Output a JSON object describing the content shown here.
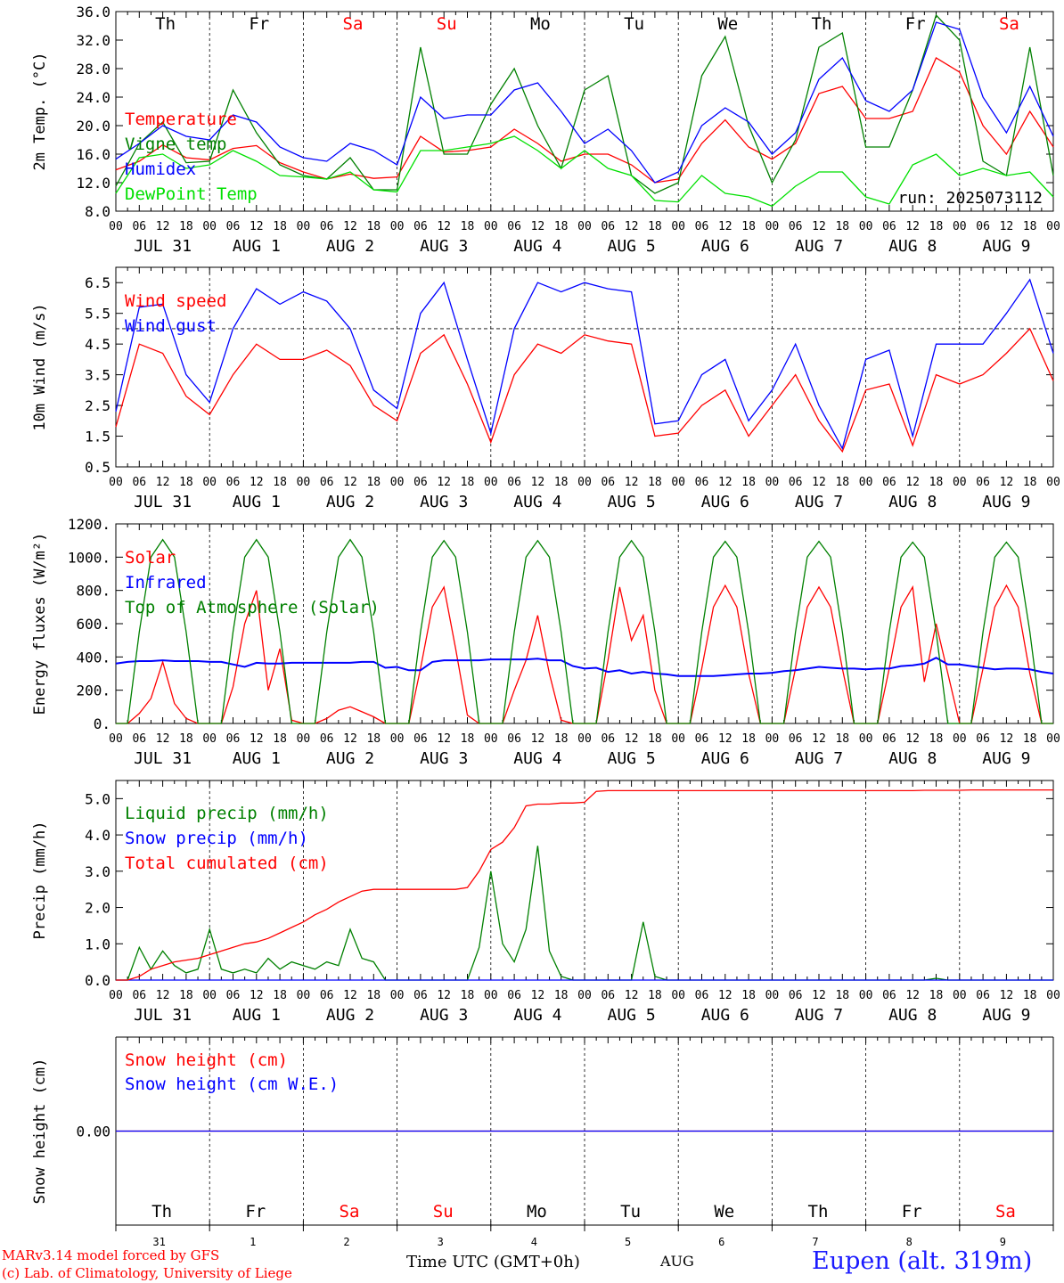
{
  "days": [
    "Th",
    "Fr",
    "Sa",
    "Su",
    "Mo",
    "Tu",
    "We",
    "Th",
    "Fr",
    "Sa"
  ],
  "weekend_indices": [
    2,
    3,
    9
  ],
  "date_labels": [
    "JUL 31",
    "AUG  1",
    "AUG  2",
    "AUG  3",
    "AUG  4",
    "AUG  5",
    "AUG  6",
    "AUG  7",
    "AUG  8",
    "AUG  9"
  ],
  "hour_ticks": [
    "00",
    "06",
    "12",
    "18"
  ],
  "bottom_day_numbers": [
    "31",
    "1",
    "2",
    "3",
    "4",
    "5",
    "6",
    "7",
    "8",
    "9"
  ],
  "bottom_month": "AUG",
  "xlabel": "Time UTC (GMT+0h)",
  "credits": [
    "MARv3.14 model forced by GFS",
    "(c) Lab. of Climatology, University of Liege"
  ],
  "station": "Eupen (alt. 319m)",
  "colors": {
    "red": "#ff0000",
    "blue": "#0000ff",
    "green": "#008000",
    "lightgreen": "#00e000"
  },
  "chart_data": [
    {
      "type": "line",
      "ylabel": "2m Temp. (°C)",
      "ylim": [
        8,
        36
      ],
      "yticks": [
        "8.0",
        "12.0",
        "16.0",
        "20.0",
        "24.0",
        "28.0",
        "32.0",
        "36.0"
      ],
      "run_label": "run: 2025073112",
      "x_hours": [
        0,
        6,
        12,
        18,
        24,
        30,
        36,
        42,
        48,
        54,
        60,
        66,
        72,
        78,
        84,
        90,
        96,
        102,
        108,
        114,
        120,
        126,
        132,
        138,
        144,
        150,
        156,
        162,
        168,
        174,
        180,
        186,
        192,
        198,
        204,
        210,
        216,
        222,
        228,
        234,
        240
      ],
      "series": [
        {
          "name": "Temperature",
          "color": "red",
          "values": [
            13.8,
            15,
            17.3,
            15.5,
            15.2,
            16.8,
            17.2,
            14.8,
            13.5,
            12.5,
            13.2,
            12.6,
            12.8,
            18.5,
            16.3,
            16.5,
            17,
            19.5,
            17.5,
            15,
            16,
            16,
            14.5,
            12,
            12.5,
            17.5,
            20.8,
            17,
            15.3,
            17.5,
            24.5,
            25.5,
            21,
            21,
            22,
            29.5,
            27.5,
            20,
            16,
            22,
            17
          ]
        },
        {
          "name": "Vigne temp",
          "color": "green",
          "values": [
            11.5,
            17.5,
            20.5,
            14.8,
            15,
            25,
            19,
            14.5,
            13,
            12.5,
            15.5,
            11,
            11,
            31,
            16,
            16,
            23,
            28,
            20,
            14,
            25,
            27,
            13,
            10.5,
            12,
            27,
            32.5,
            20,
            12,
            18,
            31,
            33,
            17,
            17,
            25,
            35.5,
            32,
            15,
            13,
            31,
            13
          ]
        },
        {
          "name": "Humidex",
          "color": "blue",
          "values": [
            15.3,
            17.5,
            20,
            18.5,
            18,
            21.5,
            20.5,
            17,
            15.5,
            15,
            17.5,
            16.5,
            14.5,
            24,
            21,
            21.5,
            21.5,
            25,
            26,
            22,
            17.5,
            19.5,
            16.5,
            12,
            13.5,
            20,
            22.5,
            20.5,
            16,
            19,
            26.5,
            29.5,
            23.5,
            22,
            25,
            34.5,
            33.5,
            24,
            19,
            25.5,
            18.5
          ]
        },
        {
          "name": "DewPoint Temp",
          "color": "lightgreen",
          "values": [
            10.5,
            15.5,
            16,
            14,
            14.5,
            16.5,
            15,
            13,
            12.8,
            12.5,
            13.5,
            11,
            10.7,
            16.5,
            16.5,
            17,
            17.5,
            18.5,
            16.5,
            14,
            16.5,
            14,
            13,
            9.5,
            9.3,
            13,
            10.5,
            10,
            8.7,
            11.5,
            13.5,
            13.5,
            10,
            9,
            14.5,
            16,
            13,
            14,
            13,
            13.5,
            10
          ]
        }
      ]
    },
    {
      "type": "line",
      "ylabel": "10m Wind (m/s)",
      "ylim": [
        0.5,
        7
      ],
      "yticks": [
        "0.5",
        "1.5",
        "2.5",
        "3.5",
        "4.5",
        "5.5",
        "6.5"
      ],
      "ref_line": 5,
      "x_hours": [
        0,
        6,
        12,
        18,
        24,
        30,
        36,
        42,
        48,
        54,
        60,
        66,
        72,
        78,
        84,
        90,
        96,
        102,
        108,
        114,
        120,
        126,
        132,
        138,
        144,
        150,
        156,
        162,
        168,
        174,
        180,
        186,
        192,
        198,
        204,
        210,
        216,
        222,
        228,
        234,
        240
      ],
      "series": [
        {
          "name": "Wind speed",
          "color": "red",
          "values": [
            1.8,
            4.5,
            4.2,
            2.8,
            2.2,
            3.5,
            4.5,
            4,
            4,
            4.3,
            3.8,
            2.5,
            2,
            4.2,
            4.8,
            3.2,
            1.3,
            3.5,
            4.5,
            4.2,
            4.8,
            4.6,
            4.5,
            1.5,
            1.6,
            2.5,
            3,
            1.5,
            2.5,
            3.5,
            2,
            1,
            3,
            3.2,
            1.2,
            3.5,
            3.2,
            3.5,
            4.2,
            5,
            3.3
          ]
        },
        {
          "name": "Wind gust",
          "color": "blue",
          "values": [
            2.3,
            5.7,
            5.8,
            3.5,
            2.6,
            5,
            6.3,
            5.8,
            6.2,
            5.9,
            5,
            3,
            2.4,
            5.5,
            6.5,
            4,
            1.6,
            5,
            6.5,
            6.2,
            6.5,
            6.3,
            6.2,
            1.9,
            2,
            3.5,
            4,
            2,
            3,
            4.5,
            2.5,
            1.1,
            4,
            4.3,
            1.5,
            4.5,
            4.5,
            4.5,
            5.5,
            6.6,
            4.2
          ]
        }
      ]
    },
    {
      "type": "line",
      "ylabel": "Energy fluxes (W/m²)",
      "ylim": [
        0,
        1200
      ],
      "yticks": [
        "0.",
        "200.",
        "400.",
        "600.",
        "800.",
        "1000.",
        "1200."
      ],
      "x_hours": [
        0,
        3,
        6,
        9,
        12,
        15,
        18,
        21,
        24,
        27,
        30,
        33,
        36,
        39,
        42,
        45,
        48,
        51,
        54,
        57,
        60,
        63,
        66,
        69,
        72,
        75,
        78,
        81,
        84,
        87,
        90,
        93,
        96,
        99,
        102,
        105,
        108,
        111,
        114,
        117,
        120,
        123,
        126,
        129,
        132,
        135,
        138,
        141,
        144,
        147,
        150,
        153,
        156,
        159,
        162,
        165,
        168,
        171,
        174,
        177,
        180,
        183,
        186,
        189,
        192,
        195,
        198,
        201,
        204,
        207,
        210,
        213,
        216,
        219,
        222,
        225,
        228,
        231,
        234,
        237,
        240
      ],
      "series": [
        {
          "name": "Solar",
          "color": "red",
          "values": [
            0,
            0,
            60,
            150,
            370,
            120,
            30,
            0,
            0,
            0,
            220,
            600,
            800,
            200,
            450,
            20,
            0,
            0,
            30,
            80,
            100,
            70,
            40,
            0,
            0,
            0,
            330,
            700,
            820,
            450,
            50,
            0,
            0,
            0,
            200,
            380,
            650,
            300,
            20,
            0,
            0,
            0,
            380,
            820,
            500,
            650,
            200,
            0,
            0,
            0,
            330,
            700,
            830,
            700,
            300,
            0,
            0,
            0,
            330,
            700,
            820,
            700,
            330,
            0,
            0,
            0,
            330,
            700,
            820,
            250,
            600,
            300,
            0,
            0,
            330,
            700,
            830,
            700,
            300,
            0,
            0
          ]
        },
        {
          "name": "Infrared",
          "color": "blue",
          "values": [
            360,
            370,
            375,
            375,
            380,
            375,
            375,
            375,
            370,
            370,
            355,
            340,
            365,
            360,
            360,
            365,
            365,
            365,
            365,
            365,
            365,
            370,
            370,
            335,
            340,
            320,
            320,
            370,
            380,
            380,
            380,
            380,
            385,
            385,
            385,
            385,
            390,
            380,
            380,
            345,
            330,
            335,
            310,
            320,
            300,
            310,
            300,
            295,
            285,
            285,
            285,
            285,
            290,
            295,
            300,
            300,
            305,
            315,
            320,
            330,
            340,
            335,
            330,
            330,
            325,
            330,
            330,
            345,
            350,
            360,
            395,
            355,
            355,
            345,
            335,
            325,
            330,
            330,
            325,
            310,
            300
          ]
        },
        {
          "name": "Top of Atmosphere (Solar)",
          "color": "green",
          "values": [
            0,
            0,
            550,
            1000,
            1105,
            1000,
            550,
            0,
            0,
            0,
            550,
            1000,
            1105,
            1000,
            550,
            0,
            0,
            0,
            550,
            1000,
            1105,
            1000,
            550,
            0,
            0,
            0,
            550,
            1000,
            1100,
            1000,
            550,
            0,
            0,
            0,
            550,
            1000,
            1100,
            1000,
            550,
            0,
            0,
            0,
            550,
            1000,
            1100,
            1000,
            550,
            0,
            0,
            0,
            550,
            1000,
            1095,
            1000,
            550,
            0,
            0,
            0,
            550,
            1000,
            1095,
            1000,
            550,
            0,
            0,
            0,
            550,
            1000,
            1090,
            1000,
            550,
            0,
            0,
            0,
            550,
            1000,
            1090,
            1000,
            550,
            0,
            0
          ]
        }
      ]
    },
    {
      "type": "line",
      "ylabel": "Precip (mm/h)",
      "ylim": [
        0,
        5.5
      ],
      "yticks": [
        "0.0",
        "1.0",
        "2.0",
        "3.0",
        "4.0",
        "5.0"
      ],
      "x_hours": [
        0,
        3,
        6,
        9,
        12,
        15,
        18,
        21,
        24,
        27,
        30,
        33,
        36,
        39,
        42,
        45,
        48,
        51,
        54,
        57,
        60,
        63,
        66,
        69,
        72,
        75,
        78,
        81,
        84,
        87,
        90,
        93,
        96,
        99,
        102,
        105,
        108,
        111,
        114,
        117,
        120,
        123,
        126,
        129,
        132,
        135,
        138,
        141,
        144,
        147,
        150,
        153,
        156,
        159,
        162,
        165,
        168,
        171,
        174,
        177,
        180,
        183,
        186,
        189,
        192,
        195,
        198,
        201,
        204,
        207,
        210,
        213,
        216,
        219,
        222,
        225,
        228,
        231,
        234,
        237,
        240
      ],
      "series": [
        {
          "name": "Liquid precip (mm/h)",
          "color": "green",
          "values": [
            0,
            0,
            0.9,
            0.3,
            0.8,
            0.4,
            0.2,
            0.3,
            1.4,
            0.3,
            0.2,
            0.3,
            0.2,
            0.6,
            0.3,
            0.5,
            0.4,
            0.3,
            0.5,
            0.4,
            1.4,
            0.6,
            0.5,
            0,
            0,
            0,
            0,
            0,
            0,
            0,
            0,
            0.9,
            3,
            1,
            0.5,
            1.4,
            3.7,
            0.8,
            0.1,
            0,
            0,
            0,
            0,
            0,
            0,
            1.6,
            0.1,
            0,
            0,
            0,
            0,
            0,
            0,
            0,
            0,
            0,
            0,
            0,
            0,
            0,
            0,
            0,
            0,
            0,
            0,
            0,
            0,
            0,
            0,
            0,
            0.05,
            0,
            0,
            0,
            0,
            0,
            0,
            0,
            0,
            0,
            0
          ]
        },
        {
          "name": "Snow precip (mm/h)",
          "color": "blue",
          "values": [
            0,
            0,
            0,
            0,
            0,
            0,
            0,
            0,
            0,
            0,
            0,
            0,
            0,
            0,
            0,
            0,
            0,
            0,
            0,
            0,
            0,
            0,
            0,
            0,
            0,
            0,
            0,
            0,
            0,
            0,
            0,
            0,
            0,
            0,
            0,
            0,
            0,
            0,
            0,
            0,
            0,
            0,
            0,
            0,
            0,
            0,
            0,
            0,
            0,
            0,
            0,
            0,
            0,
            0,
            0,
            0,
            0,
            0,
            0,
            0,
            0,
            0,
            0,
            0,
            0,
            0,
            0,
            0,
            0,
            0,
            0,
            0,
            0,
            0,
            0,
            0,
            0,
            0,
            0,
            0,
            0
          ]
        },
        {
          "name": "Total cumulated (cm)",
          "color": "red",
          "values": [
            0,
            0,
            0.1,
            0.3,
            0.4,
            0.5,
            0.55,
            0.6,
            0.7,
            0.8,
            0.9,
            1,
            1.05,
            1.15,
            1.3,
            1.45,
            1.6,
            1.8,
            1.95,
            2.15,
            2.3,
            2.45,
            2.5,
            2.5,
            2.5,
            2.5,
            2.5,
            2.5,
            2.5,
            2.5,
            2.55,
            3,
            3.6,
            3.8,
            4.2,
            4.8,
            4.85,
            4.85,
            4.88,
            4.88,
            4.9,
            5.2,
            5.22,
            5.22,
            5.22,
            5.22,
            5.22,
            5.22,
            5.22,
            5.22,
            5.22,
            5.22,
            5.22,
            5.22,
            5.22,
            5.22,
            5.22,
            5.22,
            5.22,
            5.22,
            5.22,
            5.22,
            5.22,
            5.22,
            5.22,
            5.22,
            5.22,
            5.22,
            5.22,
            5.23,
            5.23,
            5.23,
            5.23,
            5.24,
            5.24,
            5.24,
            5.24,
            5.24,
            5.24,
            5.24,
            5.24
          ]
        }
      ]
    },
    {
      "type": "line",
      "ylabel": "Snow height (cm)",
      "ylim": [
        -1,
        1
      ],
      "yticks": [
        "0.00"
      ],
      "x_hours": [
        0,
        240
      ],
      "series": [
        {
          "name": "Snow height (cm)",
          "color": "red",
          "values": [
            0,
            0
          ]
        },
        {
          "name": "Snow height (cm W.E.)",
          "color": "blue",
          "values": [
            0,
            0
          ]
        }
      ]
    }
  ]
}
